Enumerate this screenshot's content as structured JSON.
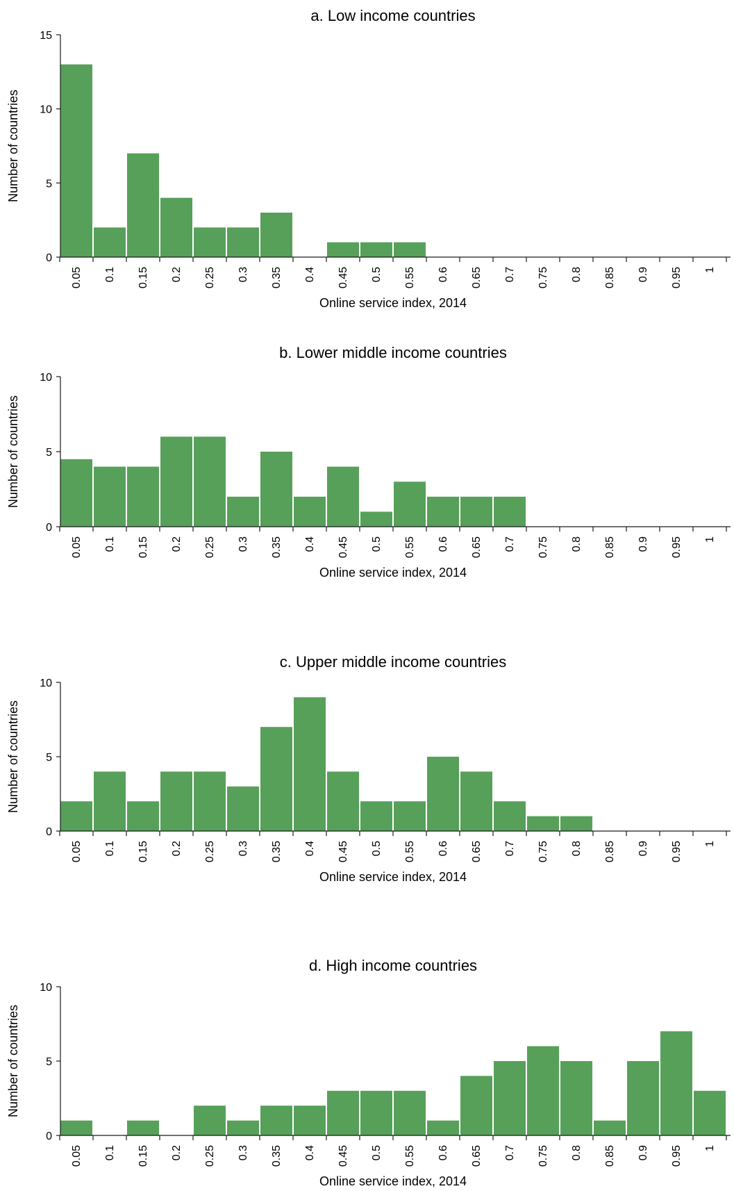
{
  "chart_data": [
    {
      "type": "bar",
      "title": "a. Low income countries",
      "xlabel": "Online service index, 2014",
      "ylabel": "Number of countries",
      "ylim": [
        0,
        15
      ],
      "yticks": [
        0,
        5,
        10,
        15
      ],
      "categories": [
        "0.05",
        "0.1",
        "0.15",
        "0.2",
        "0.25",
        "0.3",
        "0.35",
        "0.4",
        "0.45",
        "0.5",
        "0.55",
        "0.6",
        "0.65",
        "0.7",
        "0.75",
        "0.8",
        "0.85",
        "0.9",
        "0.95",
        "1"
      ],
      "values": [
        13,
        2,
        7,
        4,
        2,
        2,
        3,
        0,
        1,
        1,
        1,
        0,
        0,
        0,
        0,
        0,
        0,
        0,
        0,
        0
      ],
      "color": "#57a05a",
      "grid": false
    },
    {
      "type": "bar",
      "title": "b. Lower middle income countries",
      "xlabel": "Online service index, 2014",
      "ylabel": "Number of countries",
      "ylim": [
        0,
        10
      ],
      "yticks": [
        0,
        5,
        10
      ],
      "categories": [
        "0.05",
        "0.1",
        "0.15",
        "0.2",
        "0.25",
        "0.3",
        "0.35",
        "0.4",
        "0.45",
        "0.5",
        "0.55",
        "0.6",
        "0.65",
        "0.7",
        "0.75",
        "0.8",
        "0.85",
        "0.9",
        "0.95",
        "1"
      ],
      "values": [
        4.5,
        4,
        4,
        6,
        6,
        2,
        5,
        2,
        4,
        1,
        3,
        2,
        2,
        2,
        0,
        0,
        0,
        0,
        0,
        0
      ],
      "color": "#57a05a",
      "grid": false
    },
    {
      "type": "bar",
      "title": "c. Upper middle income countries",
      "xlabel": "Online service index, 2014",
      "ylabel": "Number of countries",
      "ylim": [
        0,
        10
      ],
      "yticks": [
        0,
        5,
        10
      ],
      "categories": [
        "0.05",
        "0.1",
        "0.15",
        "0.2",
        "0.25",
        "0.3",
        "0.35",
        "0.4",
        "0.45",
        "0.5",
        "0.55",
        "0.6",
        "0.65",
        "0.7",
        "0.75",
        "0.8",
        "0.85",
        "0.9",
        "0.95",
        "1"
      ],
      "values": [
        2,
        4,
        2,
        4,
        4,
        3,
        7,
        9,
        4,
        2,
        2,
        5,
        4,
        2,
        1,
        1,
        0,
        0,
        0,
        0
      ],
      "color": "#57a05a",
      "grid": false
    },
    {
      "type": "bar",
      "title": "d. High income countries",
      "xlabel": "Online service index, 2014",
      "ylabel": "Number of countries",
      "ylim": [
        0,
        10
      ],
      "yticks": [
        0,
        5,
        10
      ],
      "categories": [
        "0.05",
        "0.1",
        "0.15",
        "0.2",
        "0.25",
        "0.3",
        "0.35",
        "0.4",
        "0.45",
        "0.5",
        "0.55",
        "0.6",
        "0.65",
        "0.7",
        "0.75",
        "0.8",
        "0.85",
        "0.9",
        "0.95",
        "1"
      ],
      "values": [
        1,
        0,
        1,
        0,
        2,
        1,
        2,
        2,
        3,
        3,
        3,
        1,
        4,
        5,
        6,
        5,
        1,
        5,
        7,
        3
      ],
      "color": "#57a05a",
      "grid": false
    }
  ]
}
